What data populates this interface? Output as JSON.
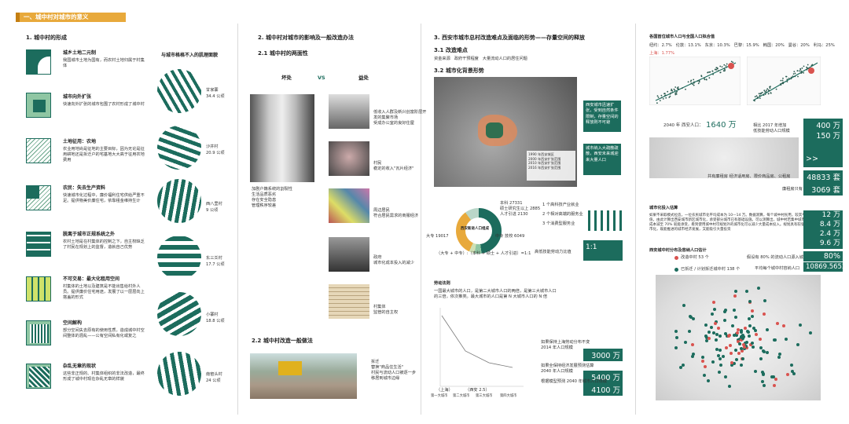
{
  "header": {
    "title": "一、城中村对城市的意义"
  },
  "col1": {
    "heading": "1. 城中村的形成",
    "right_heading": "与城市格格不入的肌理面貌",
    "items": [
      {
        "title": "城乡土地二元制",
        "desc": "我国城市土地为国有，而农村土地归属于村集体"
      },
      {
        "title": "城市向外扩张",
        "desc": "快速向外扩张的城市包围了农村形成了城中村"
      },
      {
        "title": "土地征用：农地",
        "desc": "农业用地尚是征地的主要目标，因为无论是征用耕地还是拆迁户的宅基地大大高于征用农地费用"
      },
      {
        "title": "农民：失去生产资料",
        "desc": "快速城市化过程中，廉价福利住宅供给严重不足。提供物美价廉住宅，依靠租金维持生计"
      },
      {
        "title": "脱离于城市正规系统之外",
        "desc": "农村土地是在村集体的控制之下，自主权缺乏了村民在规划上的监督，造就自己优势"
      },
      {
        "title": "不可交易：最大化租用空间",
        "desc": "村集体的土地以及建筑是不能出售给村外人员。提供廉价住宅用途，发展了以一层层向上搭盖的形式"
      },
      {
        "title": "空间解构",
        "desc": "部分空间失去原有的使用性质，造成城中村空间整体的混乱——公有空间私有化或复之"
      },
      {
        "title": "杂乱无章的现状",
        "desc": "这些非正规的、村集体组织的非法改造，最终形成了城中村现在杂乱无章的样貌"
      }
    ],
    "villages": [
      {
        "name": "甘家寨",
        "area": "34.4 公顷"
      },
      {
        "name": "沙井村",
        "area": "20.9 公顷"
      },
      {
        "name": "西八里村",
        "area": "9 公顷"
      },
      {
        "name": "东三爻村",
        "area": "17.7 公顷"
      },
      {
        "name": "小寨村",
        "area": "18.8 公顷"
      },
      {
        "name": "南窑头村",
        "area": "24 公顷"
      }
    ]
  },
  "col2": {
    "heading": "2. 城中村对城市的影响及一般改造办法",
    "sub1": "2.1 城中村的两面性",
    "bad_label": "坏处",
    "vs_label": "VS",
    "good_label": "益处",
    "bad_text": "加剧户籍系统的割裂性\n生活品质恶劣\n存在安全隐患\n管理秩序较差",
    "good": [
      {
        "text": "低收入人群及新兴创富阶层开发的集聚市场\n受成办公室的良好住屋"
      },
      {
        "text": "村民\n稳定的收入\"瓦片经济\""
      },
      {
        "text": "周边居民\n符合居民需求的商服经济"
      },
      {
        "text": "政府\n城市化成本投入的减少"
      },
      {
        "text": "村集体\n监管的自主权"
      }
    ],
    "sub2": "2.2 城中村改造一般做法",
    "demo_text": "拆迁\n替换\"商品住生活\"\n村民与流动人口被逐一步移居到城市边缘"
  },
  "col3": {
    "heading": "3. 西安市城市总村改造难点及面临的形势——存量空间的释放",
    "sub1": "3.1 改造难点",
    "difficulties": "资金来源   政府干预程度   大量流动人口的居住问题",
    "sub2": "3.2 城市化背景形势",
    "map_box1": "西安城市迅速扩张，受到自然条件限制，存量空间的释放则不可避",
    "map_box2": "城市纳入大疏散疏散，西安未来城迎来大量人口",
    "legend": [
      "1990 年西安城区",
      "2000 年西安扩张范围",
      "2010 年西安扩张范围",
      "2016 年西安扩张范围"
    ],
    "donut_caption": "西安新进人口组成",
    "donut_labels": {
      "benke": "本科 27331",
      "shuoshi": "硕士研究生以上 2885",
      "talent": "人才引进 2130",
      "dazhuan": "大专 19017",
      "zhongzhuan": "中专 技校 6049"
    },
    "ratio_text": "（大专 + 中专）:（本科 + 硕士 + 人才引进）=1:1",
    "icons_text": [
      "1 个高科技产业就业",
      "2 个相对高端的服务业",
      "3 个消费型服务业"
    ],
    "lowend_label": "高低技能劳动力比值",
    "ratio_box": "1:1",
    "line_title": "劳动法则",
    "line_desc": "一国最大城市的人口，是第二大城市人口的两倍，是第三大城市人口的三倍，依次推类。最大城市的人口是第 N 大城市人口的 N 倍",
    "line_x": [
      "第一大城市",
      "第二大城市",
      "第三大城市",
      "第四大城市"
    ],
    "line_sh": "（上海）",
    "line_xa": "（西安 2.5）",
    "rank_rows": [
      {
        "label": "如果保持上海劳动分布不变\n2014 年人口规模",
        "val": "3000 万"
      },
      {
        "label": "如果全保持经济发展预测估算\n2040 年人口规模",
        "val": "5400 万"
      },
      {
        "label": "根据模型预测 2040 年城市人口规模",
        "val": "4100 万"
      }
    ]
  },
  "col4": {
    "title": "各国首位城市人口与全国人口拟合值",
    "ratios": "纽约：2.7%   伦敦：13.1%   东京：10.3%   巴黎：15.9%   韩国：20%   曼谷：20%   利马：25%",
    "shanghai": "上海：1.77%",
    "pop_label": "2040 年 西安人口：",
    "pop_val": "1640 万",
    "inc_label": "相比 2017 年增加\n低技能劳动人口规模",
    "inc_vals": [
      "400 万",
      "150 万"
    ],
    "more": ">>",
    "units_label": "共有廉租房 经济适用房、限价商品房、公租房",
    "units_val": "48833 套",
    "lowrent_label": "廉租房只有",
    "lowrent_val": "3069 套",
    "calc_title": "城市化投入估算",
    "calc_text": "如果不采取模式拉造，一位农民城市化平均成本为 10—14 万。数据测算，每个城中村民用，较其半均值，由此计算出西安城市新区城市化，承受部分城市已有基础设施。可以测算出，城中村若集中城市化成本减至 70% 就能承受，看到使用城中村可规划外的城市化可以减少大量成本投入。规划具有较强城市化，既能推进的城市经济发展，又能吸引大量投资",
    "calc_vals": [
      "12 万",
      "8.4 万",
      "2.4 万",
      "9.6 万"
    ],
    "map_title": "西安城中村分布及容纳人口估计",
    "map_legend1": "改造中村 53 个",
    "map_legend2": "已拆迁 / 计划拆迁城中村 138 个",
    "percent_label": "假设有 80% 的流动人口源入城中村",
    "percent_val": "80%",
    "hold_label": "平均每个城中村容纳人口",
    "hold_val": "10869.5652",
    "colors": {
      "green": "#1c6c5d",
      "accent": "#e8a93b",
      "red": "#d9534f"
    }
  }
}
